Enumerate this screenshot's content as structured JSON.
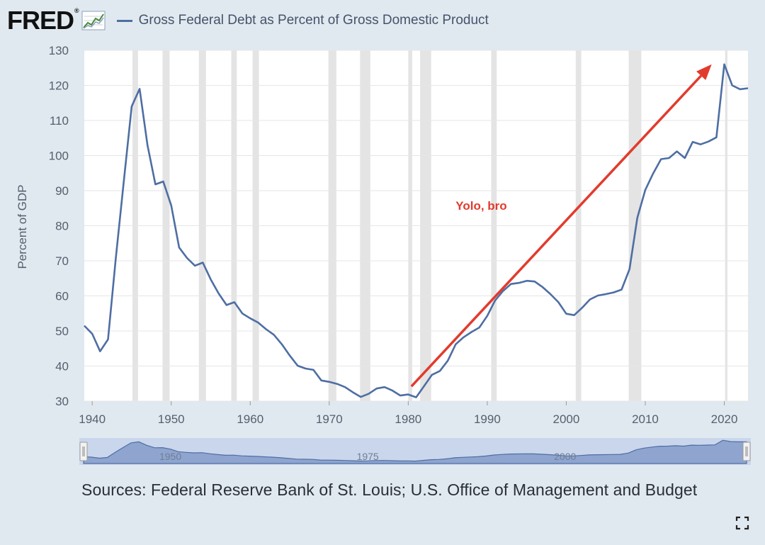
{
  "header": {
    "logo_text": "FRED",
    "logo_reg": "®",
    "legend_label": "Gross Federal Debt as Percent of Gross Domestic Product",
    "series_color": "#4e6ea3"
  },
  "chart_data": {
    "type": "line",
    "title": "Gross Federal Debt as Percent of Gross Domestic Product",
    "ylabel": "Percent of GDP",
    "xlabel": "",
    "xlim": [
      1939,
      2023
    ],
    "ylim": [
      30,
      130
    ],
    "yticks": [
      30,
      40,
      50,
      60,
      70,
      80,
      90,
      100,
      110,
      120,
      130
    ],
    "xticks": [
      1940,
      1950,
      1960,
      1970,
      1980,
      1990,
      2000,
      2010,
      2020
    ],
    "recessions": [
      [
        1945.1,
        1945.8
      ],
      [
        1948.9,
        1949.8
      ],
      [
        1953.5,
        1954.4
      ],
      [
        1957.6,
        1958.3
      ],
      [
        1960.3,
        1961.1
      ],
      [
        1969.9,
        1970.9
      ],
      [
        1973.9,
        1975.2
      ],
      [
        1980.0,
        1980.5
      ],
      [
        1981.5,
        1982.9
      ],
      [
        1990.5,
        1991.2
      ],
      [
        2001.2,
        2001.9
      ],
      [
        2007.9,
        2009.5
      ],
      [
        2020.1,
        2020.4
      ]
    ],
    "series": [
      {
        "name": "Gross Federal Debt as Percent of Gross Domestic Product",
        "color": "#4e6ea3",
        "x": [
          1939,
          1940,
          1941,
          1942,
          1943,
          1944,
          1945,
          1946,
          1947,
          1948,
          1949,
          1950,
          1951,
          1952,
          1953,
          1954,
          1955,
          1956,
          1957,
          1958,
          1959,
          1960,
          1961,
          1962,
          1963,
          1964,
          1965,
          1966,
          1967,
          1968,
          1969,
          1970,
          1971,
          1972,
          1973,
          1974,
          1975,
          1976,
          1977,
          1978,
          1979,
          1980,
          1981,
          1982,
          1983,
          1984,
          1985,
          1986,
          1987,
          1988,
          1989,
          1990,
          1991,
          1992,
          1993,
          1994,
          1995,
          1996,
          1997,
          1998,
          1999,
          2000,
          2001,
          2002,
          2003,
          2004,
          2005,
          2006,
          2007,
          2008,
          2009,
          2010,
          2011,
          2012,
          2013,
          2014,
          2015,
          2016,
          2017,
          2018,
          2019,
          2020,
          2021,
          2022,
          2023
        ],
        "values": [
          51.5,
          49.2,
          44.2,
          47.6,
          71.0,
          92.7,
          114.0,
          119.0,
          103.0,
          91.8,
          92.6,
          85.8,
          73.8,
          70.8,
          68.6,
          69.5,
          64.7,
          60.7,
          57.4,
          58.2,
          55.0,
          53.6,
          52.4,
          50.5,
          48.9,
          46.2,
          43.0,
          40.1,
          39.3,
          38.9,
          35.9,
          35.5,
          34.9,
          34.0,
          32.5,
          31.2,
          32.1,
          33.6,
          34.0,
          33.0,
          31.6,
          31.9,
          31.1,
          34.3,
          37.5,
          38.6,
          41.5,
          46.2,
          48.2,
          49.7,
          51.0,
          54.3,
          58.7,
          61.4,
          63.4,
          63.7,
          64.3,
          64.1,
          62.5,
          60.5,
          58.2,
          54.9,
          54.5,
          56.6,
          59.0,
          60.1,
          60.5,
          61.0,
          61.8,
          67.6,
          82.3,
          90.2,
          94.9,
          99.0,
          99.3,
          101.2,
          99.3,
          103.9,
          103.2,
          104.0,
          105.2,
          126.0,
          120.0,
          118.9,
          119.2
        ]
      }
    ],
    "annotations": [
      {
        "type": "arrow",
        "from": [
          1980.4,
          34.2
        ],
        "to": [
          2018.4,
          126.0
        ],
        "color": "#e23b2d"
      },
      {
        "type": "text",
        "text": "Yolo, bro",
        "at": [
          1986.0,
          84.5
        ],
        "color": "#e23b2d"
      }
    ],
    "navigator": {
      "labels": [
        "1950",
        "1975",
        "2000"
      ]
    }
  },
  "sources": "Sources: Federal Reserve Bank of St. Louis; U.S. Office of Management and Budget"
}
